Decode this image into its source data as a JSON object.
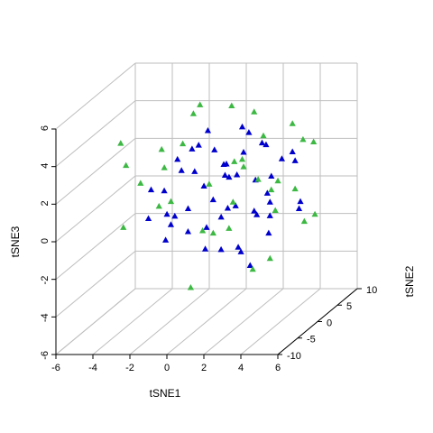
{
  "chart_data": {
    "type": "scatter3d",
    "xlabel": "tSNE1",
    "ylabel": "tSNE2",
    "zlabel": "tSNE3",
    "xlim": [
      -6,
      6
    ],
    "xticks": [
      -6,
      -4,
      -2,
      0,
      2,
      4,
      6
    ],
    "ylim": [
      -10,
      10
    ],
    "yticks": [
      -10,
      -5,
      0,
      5,
      10
    ],
    "zlim": [
      -6,
      6
    ],
    "zticks": [
      -6,
      -4,
      -2,
      0,
      2,
      4,
      6
    ],
    "grid": true,
    "series": [
      {
        "color": "#0000cd",
        "x": [
          0.5,
          1,
          -1,
          2,
          1.5,
          -0.5,
          3,
          0,
          -2,
          2.5,
          1,
          -1.5,
          3.5,
          0.5,
          2,
          -1,
          4,
          1,
          -2.5,
          0,
          3,
          1.5,
          -0.5,
          2.5,
          4.5,
          -3,
          0.5,
          1.5,
          3.5,
          -1,
          2,
          0,
          5,
          -1.5,
          1,
          3,
          -2,
          2.5,
          0.5,
          4,
          -0.5,
          1.5,
          3,
          -3,
          0,
          2,
          -1,
          4.5,
          1,
          2.5
        ],
        "y": [
          2,
          -3,
          4,
          0,
          5,
          -5,
          2,
          0,
          3,
          -4,
          6,
          -2,
          -1,
          -7,
          7,
          1,
          3,
          -1,
          -3,
          5,
          -6,
          2,
          6,
          4,
          -2,
          0,
          3,
          -5,
          6,
          -6,
          -2,
          -3,
          0,
          5,
          1,
          -3,
          -1,
          1,
          -2,
          5,
          2,
          8,
          0,
          4,
          -8,
          3,
          0,
          -5,
          4,
          -7
        ],
        "z": [
          2,
          1,
          0.5,
          3,
          -1,
          3.5,
          0,
          -1,
          1.5,
          2.5,
          3,
          -0.5,
          1,
          0,
          0.5,
          3,
          2.5,
          -2,
          0,
          1.5,
          -1,
          4,
          -1.5,
          -2,
          3,
          1,
          -0.5,
          4,
          1.5,
          2,
          0.5,
          2.5,
          0,
          2.5,
          1.5,
          -2.5,
          -1.5,
          -0.5,
          4.5,
          -0.5,
          -2.5,
          2,
          3.5,
          -1,
          1,
          1,
          0,
          0.5,
          -3,
          3
        ]
      },
      {
        "color": "#3cb843",
        "x": [
          -4,
          -3.5,
          -2,
          0,
          4,
          3,
          5,
          -4.5,
          2,
          1,
          3.5,
          -1,
          4.5,
          0.5,
          2.5,
          -2,
          5,
          1.5,
          -3,
          3,
          0,
          4,
          -1.5,
          2,
          -4,
          1,
          3.5,
          -0.5,
          4.5,
          0,
          2,
          -2.5,
          5.5,
          1.5,
          3
        ],
        "y": [
          2,
          -4,
          6,
          -6,
          3,
          -2,
          1,
          0,
          5,
          -4,
          6,
          3,
          -3,
          7,
          -6,
          -2,
          4,
          0,
          5,
          2,
          -1,
          -7,
          -5,
          8,
          -3,
          2,
          0,
          4,
          6,
          -4,
          -3,
          1,
          -1,
          6,
          -5
        ],
        "z": [
          1,
          3,
          4,
          4.5,
          4,
          5.5,
          3.5,
          -1,
          3,
          2,
          0,
          5,
          2,
          1,
          0,
          3.5,
          -1,
          2.5,
          -0.5,
          -3,
          -1,
          -2,
          1,
          -1.5,
          4,
          0,
          1,
          -2,
          2.5,
          -3.5,
          6,
          2,
          -0.5,
          0.5,
          3.5
        ]
      }
    ]
  }
}
